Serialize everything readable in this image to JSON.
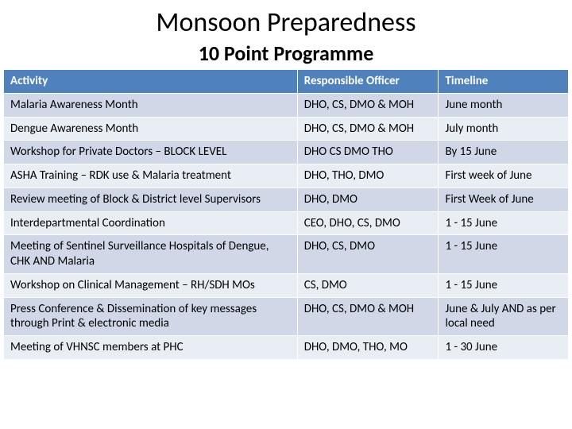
{
  "title": "Monsoon Preparedness",
  "subtitle": "10 Point Programme",
  "table": {
    "columns": [
      "Activity",
      "Responsible Officer",
      "Timeline"
    ],
    "rows": [
      [
        "Malaria Awareness Month",
        "DHO, CS, DMO & MOH",
        "June month"
      ],
      [
        "Dengue Awareness Month",
        "DHO, CS, DMO & MOH",
        "July month"
      ],
      [
        "Workshop for Private Doctors – BLOCK LEVEL",
        "DHO CS DMO THO",
        "By 15 June"
      ],
      [
        "ASHA Training – RDK use & Malaria treatment",
        "DHO, THO, DMO",
        "First week of June"
      ],
      [
        "Review meeting of Block & District level Supervisors",
        "DHO, DMO",
        "First Week of June"
      ],
      [
        "Interdepartmental Coordination",
        "CEO, DHO, CS, DMO",
        "1 - 15 June"
      ],
      [
        "Meeting of Sentinel Surveillance Hospitals of Dengue, CHK AND Malaria",
        "DHO, CS, DMO",
        "1 - 15 June"
      ],
      [
        "Workshop on Clinical Management – RH/SDH MOs",
        "CS, DMO",
        "1 - 15 June"
      ],
      [
        "Press Conference & Dissemination of key messages through Print & electronic media",
        "DHO, CS, DMO & MOH",
        "June & July AND as per local need"
      ],
      [
        "Meeting of VHNSC members at PHC",
        "DHO, DMO, THO, MO",
        "1 - 30 June"
      ]
    ],
    "header_bg": "#4f81bd",
    "header_fg": "#ffffff",
    "row_odd_bg": "#d0d8e8",
    "row_even_bg": "#e9edf4",
    "border_color": "#ffffff",
    "font_size": 15,
    "col_widths_pct": [
      52,
      25,
      23
    ]
  }
}
